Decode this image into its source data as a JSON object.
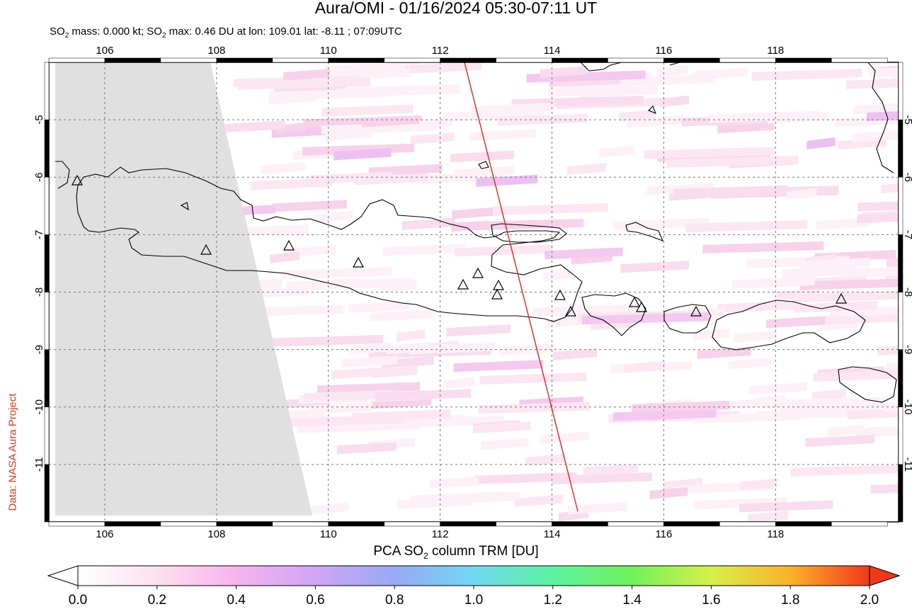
{
  "title": "Aura/OMI - 01/16/2024 05:30-07:11 UT",
  "subtitle": {
    "prefix": "SO",
    "sub": "2",
    "text1": " mass: 0.000 kt; SO",
    "text2": " max: 0.46 DU at lon: 109.01 lat: -8.11 ; 07:09UTC"
  },
  "credit": "Data: NASA Aura Project",
  "map": {
    "lon_range": [
      105.0,
      120.2
    ],
    "lat_range": [
      -12.0,
      -4.0
    ],
    "lon_ticks": [
      "106",
      "108",
      "110",
      "112",
      "114",
      "116",
      "118"
    ],
    "lat_ticks": [
      "-5",
      "-6",
      "-7",
      "-8",
      "-9",
      "-10",
      "-11"
    ],
    "grid": "dashed",
    "no_data_color": "#e0e0e0",
    "track_color": "#d9281a",
    "volcano_count": 14
  },
  "colorbar": {
    "label_prefix": "PCA SO",
    "label_sub": "2",
    "label_suffix": " column TRM [DU]",
    "ticks": [
      "0.0",
      "0.2",
      "0.4",
      "0.6",
      "0.8",
      "1.0",
      "1.2",
      "1.4",
      "1.6",
      "1.8",
      "2.0"
    ],
    "colors": [
      "#ffffff",
      "#fde0ee",
      "#f7b3ef",
      "#cfa6f5",
      "#9aa8f7",
      "#6fd8f4",
      "#5cf3a0",
      "#6ff25a",
      "#d7f04a",
      "#fab22a",
      "#f1381a"
    ]
  }
}
